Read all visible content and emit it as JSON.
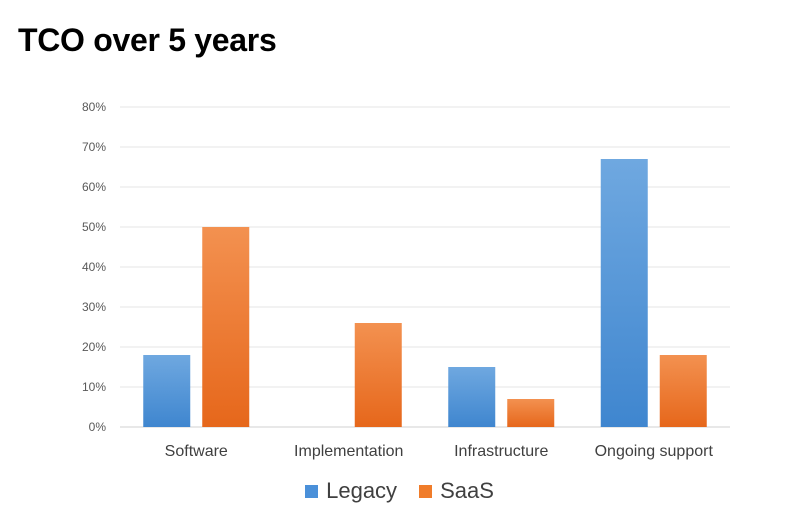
{
  "chart_data": {
    "type": "bar",
    "title": "TCO over 5 years",
    "categories": [
      "Software",
      "Implementation",
      "Infrastructure",
      "Ongoing support"
    ],
    "series": [
      {
        "name": "Legacy",
        "values": [
          18,
          0,
          15,
          67
        ],
        "color": "#4a90d9"
      },
      {
        "name": "SaaS",
        "values": [
          50,
          26,
          7,
          18
        ],
        "color": "#f07c2a"
      }
    ],
    "ylim": [
      0,
      80
    ],
    "yticks": [
      "0%",
      "10%",
      "20%",
      "30%",
      "40%",
      "50%",
      "60%",
      "70%",
      "80%"
    ],
    "grid": true,
    "legend_position": "bottom"
  }
}
